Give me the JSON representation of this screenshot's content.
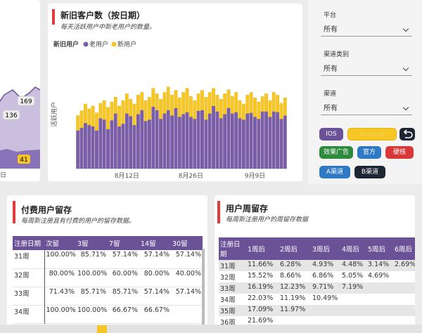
{
  "left_chart": {
    "values": [
      169,
      136,
      41
    ],
    "x_label": "日"
  },
  "chart_data": {
    "type": "bar",
    "stacked": true,
    "title": "新旧客户数（按日期）",
    "subtitle": "每天活跃用户中新老用户的数量。",
    "legend_title": "新旧用户",
    "y_label": "活跃用户",
    "categories": [
      null,
      null,
      null,
      null,
      null,
      null,
      null,
      null,
      null,
      null,
      null,
      null,
      null,
      "8月12日",
      null,
      null,
      null,
      null,
      null,
      null,
      null,
      null,
      null,
      null,
      null,
      null,
      null,
      null,
      null,
      null,
      "8月26日",
      null,
      null,
      null,
      null,
      null,
      null,
      null,
      null,
      null,
      null,
      null,
      null,
      null,
      null,
      null,
      null,
      "9月9日",
      null,
      null,
      null,
      null,
      null,
      null,
      null,
      null
    ],
    "series": [
      {
        "name": "老用户",
        "color": "#7b5ea7",
        "values": [
          56,
          60,
          67,
          64,
          62,
          56,
          74,
          72,
          58,
          71,
          81,
          62,
          66,
          81,
          77,
          64,
          80,
          86,
          70,
          72,
          91,
          86,
          73,
          81,
          86,
          78,
          89,
          76,
          80,
          83,
          76,
          73,
          85,
          86,
          72,
          81,
          92,
          84,
          74,
          80,
          89,
          81,
          83,
          74,
          72,
          81,
          82,
          76,
          73,
          84,
          84,
          76,
          84,
          83,
          73,
          78
        ]
      },
      {
        "name": "新用户",
        "color": "#f6c624",
        "values": [
          22,
          25,
          28,
          24,
          30,
          26,
          22,
          28,
          32,
          27,
          24,
          30,
          34,
          29,
          25,
          31,
          28,
          26,
          30,
          33,
          27,
          24,
          29,
          31,
          34,
          30,
          26,
          28,
          32,
          35,
          30,
          27,
          25,
          29,
          33,
          31,
          26,
          24,
          28,
          30,
          27,
          25,
          29,
          26,
          23,
          27,
          30,
          28,
          25,
          22,
          26,
          24,
          28,
          25,
          23,
          26
        ]
      }
    ],
    "ylim": [
      0,
      160
    ]
  },
  "filters": [
    {
      "label": "平台",
      "value": "所有"
    },
    {
      "label": "渠道类别",
      "value": "所有"
    },
    {
      "label": "渠道",
      "value": "所有"
    }
  ],
  "buttons": [
    "IOS",
    "Android",
    "效果广告",
    "官方",
    "硬核",
    "A渠道",
    "B渠道"
  ],
  "paid_retention": {
    "title": "付费用户留存",
    "subtitle": "每周新注册且有付费的用户的留存数据。",
    "columns": [
      "注册日期",
      "次留",
      "3留",
      "7留",
      "14留",
      "30留"
    ],
    "rows": [
      [
        "31周",
        "100.00%",
        "85.71%",
        "57.14%",
        "57.14%",
        "57.14%"
      ],
      [
        "32周",
        "80.00%",
        "100.00%",
        "60.00%",
        "80.00%",
        "40.00%"
      ],
      [
        "33周",
        "71.43%",
        "85.71%",
        "85.71%",
        "57.14%",
        "57.14%"
      ],
      [
        "34周",
        "100.00%",
        "100.00%",
        "66.67%",
        "66.67%"
      ]
    ]
  },
  "weekly_retention": {
    "title": "用户周留存",
    "subtitle": "每周新注册用户的周留存数据",
    "columns": [
      "注册日期",
      "1周后",
      "2周后",
      "3周后",
      "4周后",
      "5周后",
      "6周后"
    ],
    "rows": [
      [
        "31周",
        "11.66%",
        "6.28%",
        "4.93%",
        "4.48%",
        "3.14%",
        "2.69%"
      ],
      [
        "32周",
        "15.52%",
        "8.66%",
        "6.86%",
        "5.05%",
        "4.69%"
      ],
      [
        "33周",
        "16.19%",
        "12.23%",
        "9.71%",
        "7.19%"
      ],
      [
        "34周",
        "22.03%",
        "11.19%",
        "10.49%"
      ],
      [
        "35周",
        "17.09%",
        "11.97%"
      ],
      [
        "36周",
        "21.69%"
      ]
    ]
  }
}
